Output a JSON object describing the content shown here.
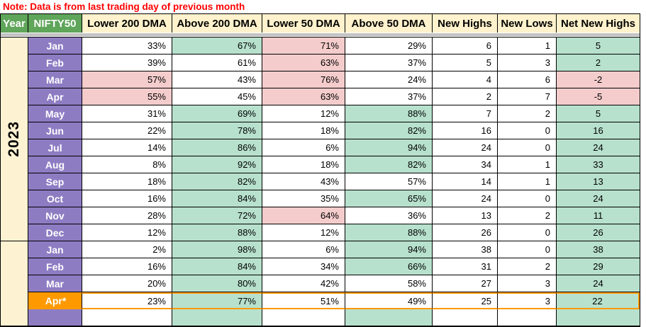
{
  "note": "Note: Data is from last trading day of previous month",
  "columns": [
    {
      "label": "Year"
    },
    {
      "label": "NIFTY50"
    },
    {
      "label": "Lower 200 DMA"
    },
    {
      "label": "Above 200 DMA"
    },
    {
      "label": "Lower 50 DMA"
    },
    {
      "label": "Above 50 DMA"
    },
    {
      "label": "New Highs"
    },
    {
      "label": "New Lows"
    },
    {
      "label": "Net New Highs"
    }
  ],
  "colors": {
    "header_green": "#5fa55a",
    "header_cream": "#fff2cc",
    "month_purple": "#8e7cc3",
    "highlight_orange": "#ff9900",
    "cell_green": "#b7e1cd",
    "cell_pink": "#f4cccc",
    "note_red": "#ff0000",
    "divider_gray": "#c2c2c2"
  },
  "year_groups": [
    {
      "year": "2023",
      "rows": [
        {
          "month": "Jan",
          "cells": [
            {
              "v": "33%",
              "bg": "w"
            },
            {
              "v": "67%",
              "bg": "g"
            },
            {
              "v": "71%",
              "bg": "p"
            },
            {
              "v": "29%",
              "bg": "w"
            },
            {
              "v": "6",
              "bg": "w"
            },
            {
              "v": "1",
              "bg": "w"
            },
            {
              "v": "5",
              "bg": "g"
            }
          ]
        },
        {
          "month": "Feb",
          "cells": [
            {
              "v": "39%",
              "bg": "w"
            },
            {
              "v": "61%",
              "bg": "w"
            },
            {
              "v": "63%",
              "bg": "p"
            },
            {
              "v": "37%",
              "bg": "w"
            },
            {
              "v": "5",
              "bg": "w"
            },
            {
              "v": "3",
              "bg": "w"
            },
            {
              "v": "2",
              "bg": "g"
            }
          ]
        },
        {
          "month": "Mar",
          "cells": [
            {
              "v": "57%",
              "bg": "p"
            },
            {
              "v": "43%",
              "bg": "w"
            },
            {
              "v": "76%",
              "bg": "p"
            },
            {
              "v": "24%",
              "bg": "w"
            },
            {
              "v": "4",
              "bg": "w"
            },
            {
              "v": "6",
              "bg": "w"
            },
            {
              "v": "-2",
              "bg": "p"
            }
          ]
        },
        {
          "month": "Apr",
          "cells": [
            {
              "v": "55%",
              "bg": "p"
            },
            {
              "v": "45%",
              "bg": "w"
            },
            {
              "v": "63%",
              "bg": "p"
            },
            {
              "v": "37%",
              "bg": "w"
            },
            {
              "v": "2",
              "bg": "w"
            },
            {
              "v": "7",
              "bg": "w"
            },
            {
              "v": "-5",
              "bg": "p"
            }
          ]
        },
        {
          "month": "May",
          "cells": [
            {
              "v": "31%",
              "bg": "w"
            },
            {
              "v": "69%",
              "bg": "g"
            },
            {
              "v": "12%",
              "bg": "w"
            },
            {
              "v": "88%",
              "bg": "g"
            },
            {
              "v": "7",
              "bg": "w"
            },
            {
              "v": "2",
              "bg": "w"
            },
            {
              "v": "5",
              "bg": "g"
            }
          ]
        },
        {
          "month": "Jun",
          "cells": [
            {
              "v": "22%",
              "bg": "w"
            },
            {
              "v": "78%",
              "bg": "g"
            },
            {
              "v": "18%",
              "bg": "w"
            },
            {
              "v": "82%",
              "bg": "g"
            },
            {
              "v": "16",
              "bg": "w"
            },
            {
              "v": "0",
              "bg": "w"
            },
            {
              "v": "16",
              "bg": "g"
            }
          ]
        },
        {
          "month": "Jul",
          "cells": [
            {
              "v": "14%",
              "bg": "w"
            },
            {
              "v": "86%",
              "bg": "g"
            },
            {
              "v": "6%",
              "bg": "w"
            },
            {
              "v": "94%",
              "bg": "g"
            },
            {
              "v": "24",
              "bg": "w"
            },
            {
              "v": "0",
              "bg": "w"
            },
            {
              "v": "24",
              "bg": "g"
            }
          ]
        },
        {
          "month": "Aug",
          "cells": [
            {
              "v": "8%",
              "bg": "w"
            },
            {
              "v": "92%",
              "bg": "g"
            },
            {
              "v": "18%",
              "bg": "w"
            },
            {
              "v": "82%",
              "bg": "g"
            },
            {
              "v": "34",
              "bg": "w"
            },
            {
              "v": "1",
              "bg": "w"
            },
            {
              "v": "33",
              "bg": "g"
            }
          ]
        },
        {
          "month": "Sep",
          "cells": [
            {
              "v": "18%",
              "bg": "w"
            },
            {
              "v": "82%",
              "bg": "g"
            },
            {
              "v": "43%",
              "bg": "w"
            },
            {
              "v": "57%",
              "bg": "w"
            },
            {
              "v": "14",
              "bg": "w"
            },
            {
              "v": "1",
              "bg": "w"
            },
            {
              "v": "13",
              "bg": "g"
            }
          ]
        },
        {
          "month": "Oct",
          "cells": [
            {
              "v": "16%",
              "bg": "w"
            },
            {
              "v": "84%",
              "bg": "g"
            },
            {
              "v": "35%",
              "bg": "w"
            },
            {
              "v": "65%",
              "bg": "g"
            },
            {
              "v": "24",
              "bg": "w"
            },
            {
              "v": "0",
              "bg": "w"
            },
            {
              "v": "24",
              "bg": "g"
            }
          ]
        },
        {
          "month": "Nov",
          "cells": [
            {
              "v": "28%",
              "bg": "w"
            },
            {
              "v": "72%",
              "bg": "g"
            },
            {
              "v": "64%",
              "bg": "p"
            },
            {
              "v": "36%",
              "bg": "w"
            },
            {
              "v": "13",
              "bg": "w"
            },
            {
              "v": "2",
              "bg": "w"
            },
            {
              "v": "11",
              "bg": "g"
            }
          ]
        },
        {
          "month": "Dec",
          "cells": [
            {
              "v": "12%",
              "bg": "w"
            },
            {
              "v": "88%",
              "bg": "g"
            },
            {
              "v": "12%",
              "bg": "w"
            },
            {
              "v": "88%",
              "bg": "g"
            },
            {
              "v": "26",
              "bg": "w"
            },
            {
              "v": "0",
              "bg": "w"
            },
            {
              "v": "26",
              "bg": "g"
            }
          ]
        }
      ]
    },
    {
      "year": "",
      "rows": [
        {
          "month": "Jan",
          "cells": [
            {
              "v": "2%",
              "bg": "w"
            },
            {
              "v": "98%",
              "bg": "g"
            },
            {
              "v": "6%",
              "bg": "w"
            },
            {
              "v": "94%",
              "bg": "g"
            },
            {
              "v": "38",
              "bg": "w"
            },
            {
              "v": "0",
              "bg": "w"
            },
            {
              "v": "38",
              "bg": "g"
            }
          ]
        },
        {
          "month": "Feb",
          "cells": [
            {
              "v": "16%",
              "bg": "w"
            },
            {
              "v": "84%",
              "bg": "g"
            },
            {
              "v": "34%",
              "bg": "w"
            },
            {
              "v": "66%",
              "bg": "g"
            },
            {
              "v": "31",
              "bg": "w"
            },
            {
              "v": "2",
              "bg": "w"
            },
            {
              "v": "29",
              "bg": "g"
            }
          ]
        },
        {
          "month": "Mar",
          "cells": [
            {
              "v": "20%",
              "bg": "w"
            },
            {
              "v": "80%",
              "bg": "g"
            },
            {
              "v": "42%",
              "bg": "w"
            },
            {
              "v": "58%",
              "bg": "w"
            },
            {
              "v": "27",
              "bg": "w"
            },
            {
              "v": "3",
              "bg": "w"
            },
            {
              "v": "24",
              "bg": "g"
            }
          ]
        },
        {
          "month": "Apr*",
          "highlight": true,
          "cells": [
            {
              "v": "23%",
              "bg": "w"
            },
            {
              "v": "77%",
              "bg": "g"
            },
            {
              "v": "51%",
              "bg": "w"
            },
            {
              "v": "49%",
              "bg": "w"
            },
            {
              "v": "25",
              "bg": "w"
            },
            {
              "v": "3",
              "bg": "w"
            },
            {
              "v": "22",
              "bg": "g"
            }
          ]
        },
        {
          "month": "",
          "partial": true,
          "cells": [
            {
              "v": "",
              "bg": "w"
            },
            {
              "v": "",
              "bg": "g"
            },
            {
              "v": "",
              "bg": "w"
            },
            {
              "v": "",
              "bg": "g"
            },
            {
              "v": "",
              "bg": "w"
            },
            {
              "v": "",
              "bg": "w"
            },
            {
              "v": "",
              "bg": "g"
            }
          ]
        }
      ]
    }
  ]
}
